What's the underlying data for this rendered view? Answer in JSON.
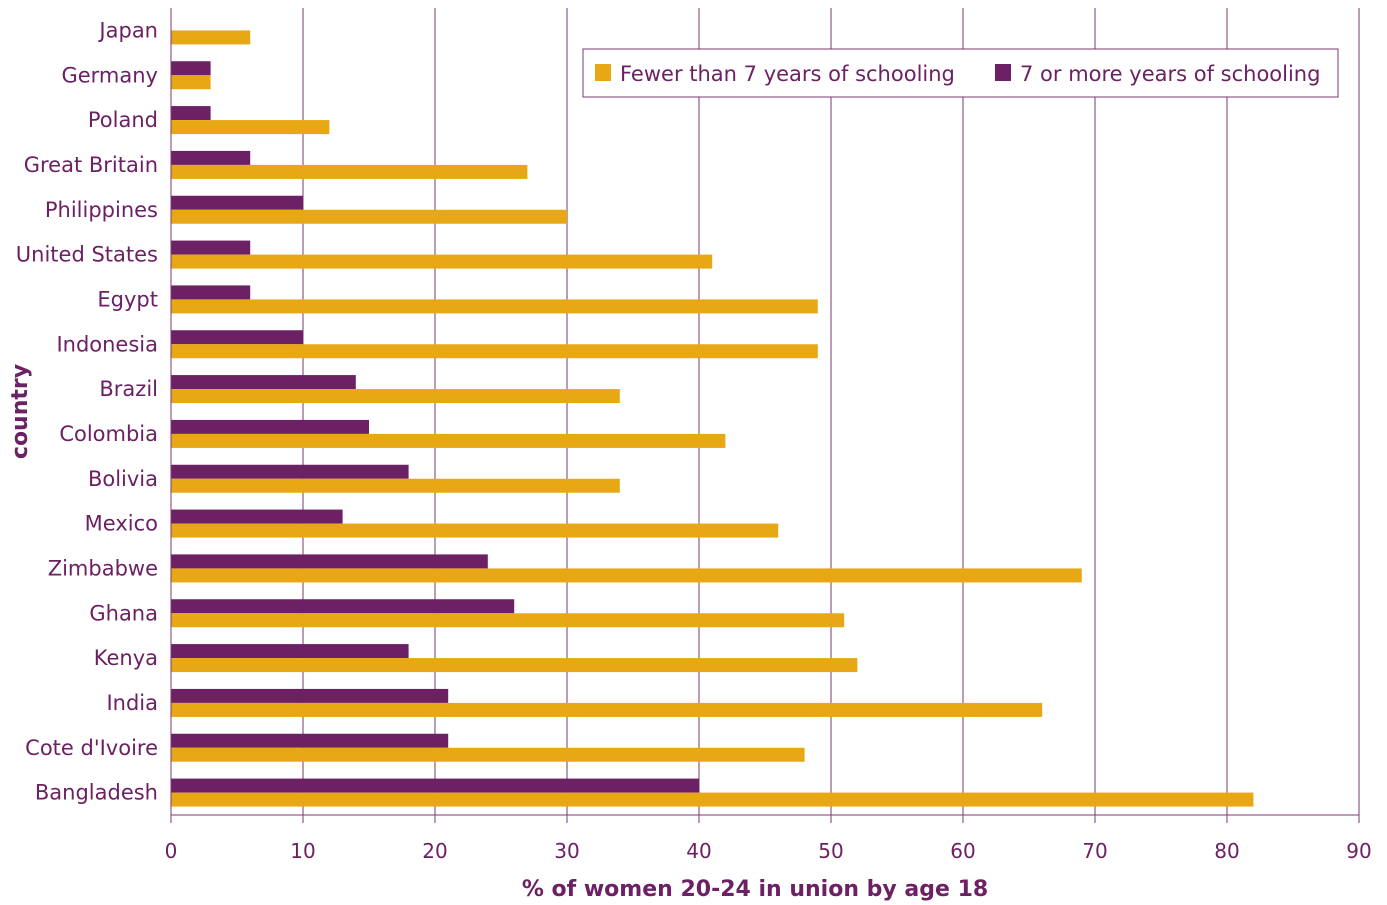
{
  "colors": {
    "fewer": "#e8a815",
    "more": "#6b2163",
    "text": "#6b2163",
    "grid": "#7a3a72"
  },
  "chart_data": {
    "type": "bar",
    "orientation": "horizontal",
    "categories": [
      "Japan",
      "Germany",
      "Poland",
      "Great Britain",
      "Philippines",
      "United States",
      "Egypt",
      "Indonesia",
      "Brazil",
      "Colombia",
      "Bolivia",
      "Mexico",
      "Zimbabwe",
      "Ghana",
      "Kenya",
      "India",
      "Cote d'Ivoire",
      "Bangladesh"
    ],
    "series": [
      {
        "name": "Fewer than 7 years of schooling",
        "values": [
          6,
          3,
          12,
          27,
          30,
          41,
          49,
          49,
          34,
          42,
          34,
          46,
          69,
          51,
          52,
          66,
          48,
          82
        ]
      },
      {
        "name": "7 or more years of schooling",
        "values": [
          0,
          3,
          3,
          6,
          10,
          6,
          6,
          10,
          14,
          15,
          18,
          13,
          24,
          26,
          18,
          21,
          21,
          40
        ]
      }
    ],
    "xlabel": "% of women 20-24 in union by age 18",
    "ylabel": "country",
    "xlim": [
      0,
      90
    ],
    "xticks": [
      0,
      10,
      20,
      30,
      40,
      50,
      60,
      70,
      80,
      90
    ],
    "grid": true,
    "legend_position": "top-right"
  }
}
